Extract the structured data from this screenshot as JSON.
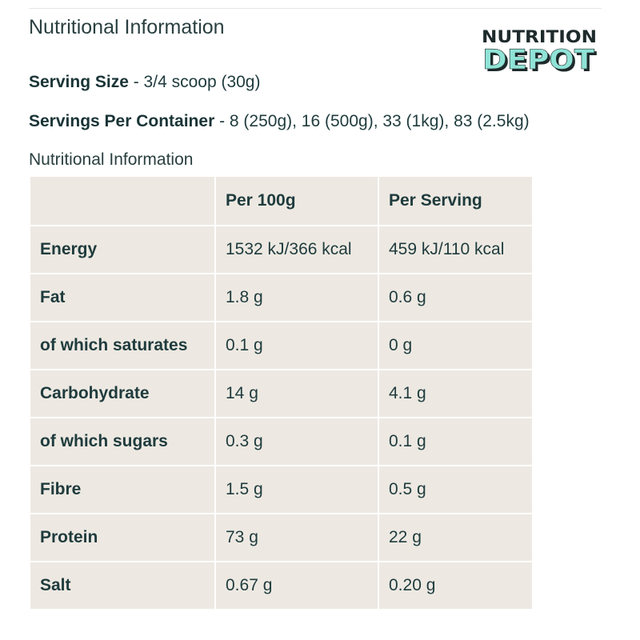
{
  "heading": "Nutritional Information",
  "logo": {
    "line1": "NUTRITION",
    "line2": "DEPOT"
  },
  "serving_size": {
    "label": "Serving Size",
    "value": " - 3/4 scoop (30g)"
  },
  "servings_per_container": {
    "label": "Servings Per Container",
    "value": " - 8 (250g), 16 (500g), 33 (1kg), 83 (2.5kg)"
  },
  "table_caption": "Nutritional Information",
  "table": {
    "headers": [
      "",
      "Per 100g",
      "Per Serving"
    ],
    "rows": [
      [
        "Energy",
        "1532 kJ/366 kcal",
        "459 kJ/110 kcal"
      ],
      [
        "Fat",
        "1.8 g",
        "0.6 g"
      ],
      [
        "of which saturates",
        "0.1 g",
        "0 g"
      ],
      [
        "Carbohydrate",
        "14 g",
        "4.1 g"
      ],
      [
        "of which sugars",
        "0.3 g",
        "0.1 g"
      ],
      [
        "Fibre",
        "1.5 g",
        "0.5 g"
      ],
      [
        "Protein",
        "73 g",
        "22 g"
      ],
      [
        "Salt",
        "0.67 g",
        "0.20 g"
      ]
    ]
  },
  "colors": {
    "text": "#1f3b3d",
    "cell_background": "#ede9e2",
    "logo_dark": "#1e2a2b",
    "logo_accent": "#8fe3d6"
  }
}
